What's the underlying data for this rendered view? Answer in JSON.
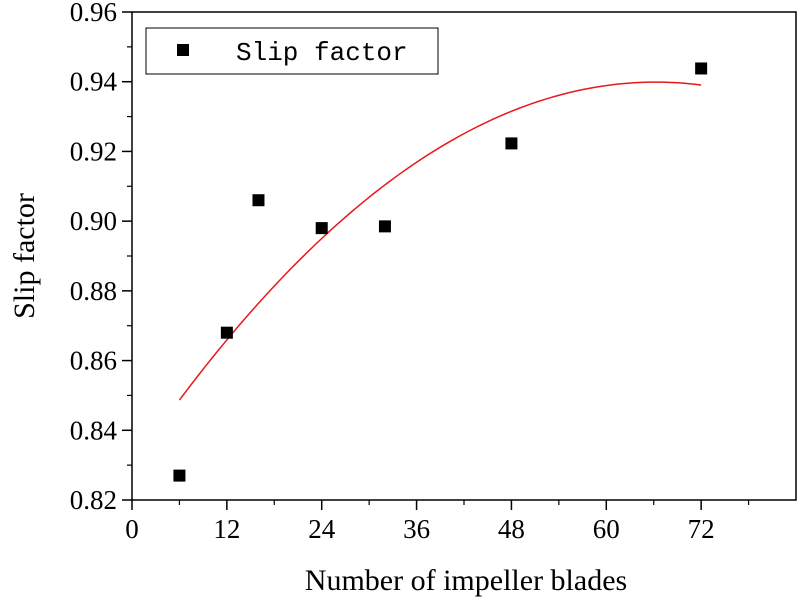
{
  "chart_data": {
    "type": "scatter",
    "title": "",
    "xlabel": "Number of impeller blades",
    "ylabel": "Slip factor",
    "xlim": [
      0,
      84
    ],
    "ylim": [
      0.82,
      0.96
    ],
    "x_ticks": [
      0,
      12,
      24,
      36,
      48,
      60,
      72
    ],
    "x_tick_labels": [
      "0",
      "12",
      "24",
      "36",
      "48",
      "60",
      "72"
    ],
    "y_ticks": [
      0.82,
      0.84,
      0.86,
      0.88,
      0.9,
      0.92,
      0.94,
      0.96
    ],
    "y_tick_labels": [
      "0.82",
      "0.84",
      "0.86",
      "0.88",
      "0.90",
      "0.92",
      "0.94",
      "0.96"
    ],
    "grid": false,
    "legend": {
      "placement": "top-left",
      "entries": [
        "Slip factor"
      ]
    },
    "series": [
      {
        "name": "Slip factor",
        "marker": "square",
        "color": "#000000",
        "x": [
          6,
          12,
          16,
          24,
          32,
          48,
          72
        ],
        "y": [
          0.827,
          0.868,
          0.906,
          0.898,
          0.8985,
          0.9223,
          0.9438
        ]
      }
    ],
    "fit_curve": {
      "name": "quadratic fit",
      "color": "#e8191b",
      "x_range": [
        6,
        72
      ],
      "coefficients": [
        0.8296,
        0.0033289,
        -2.512e-05
      ]
    }
  }
}
